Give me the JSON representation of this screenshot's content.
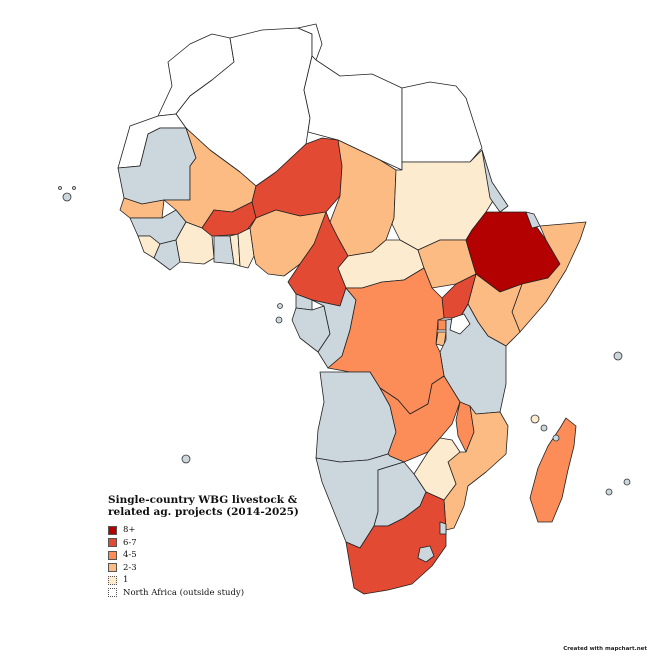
{
  "legend": {
    "title_line1": "Single-country WBG livestock &",
    "title_line2": "related ag. projects (2014-2025)",
    "items": [
      {
        "label": "8+",
        "color": "#b30000"
      },
      {
        "label": "6-7",
        "color": "#e34a33"
      },
      {
        "label": "4-5",
        "color": "#fc8d59"
      },
      {
        "label": "2-3",
        "color": "#fdbb84"
      },
      {
        "label": "1",
        "color": "#fdebd0"
      },
      {
        "label": "North Africa (outside study)",
        "color": "#ffffff"
      }
    ]
  },
  "map_colors": {
    "outside_study": "#ffffff",
    "no_projects": "#ccd6dd",
    "c1": "#fdebd0",
    "c2_3": "#fdbb84",
    "c4_5": "#fc8d59",
    "c6_7": "#e34a33",
    "c8plus": "#b30000"
  },
  "credit": "Created with mapchart.net"
}
